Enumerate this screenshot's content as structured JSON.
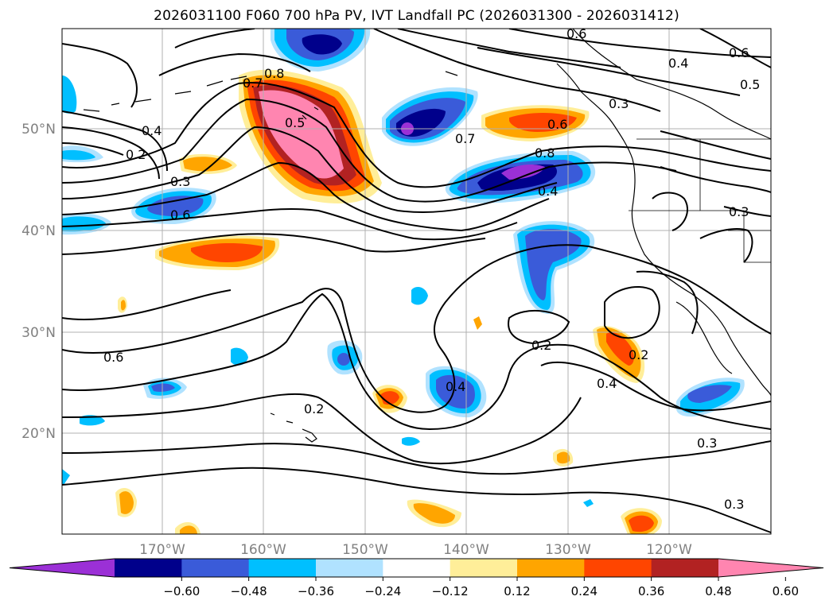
{
  "title": "2026031100 F060 700 hPa PV, IVT Landfall PC (2026031300 - 2026031412)",
  "map": {
    "lat_labels": [
      "50°N",
      "40°N",
      "30°N",
      "20°N"
    ],
    "lon_labels": [
      "170°W",
      "160°W",
      "150°W",
      "140°W",
      "130°W",
      "120°W"
    ],
    "tick_color": "#808080"
  },
  "contour_labels": [
    "0.6",
    "0.4",
    "0.5",
    "0.6",
    "0.7",
    "0.8",
    "0.5",
    "0.3",
    "0.6",
    "0.7",
    "0.8",
    "0.4",
    "0.4",
    "0.2",
    "0.3",
    "0.6",
    "0.3",
    "0.6",
    "0.2",
    "0.2",
    "0.4",
    "0.4",
    "0.2",
    "0.3",
    "0.3"
  ],
  "colorbar": {
    "colors": [
      "#9b30d6",
      "#00008b",
      "#3a5bd9",
      "#00bfff",
      "#b0e2ff",
      "#ffffff",
      "#ffee99",
      "#ffa500",
      "#ff4500",
      "#b22222",
      "#ff85b0"
    ],
    "tick_labels": [
      "−0.60",
      "−0.48",
      "−0.36",
      "−0.24",
      "−0.12",
      "0.12",
      "0.24",
      "0.36",
      "0.48",
      "0.60"
    ]
  }
}
